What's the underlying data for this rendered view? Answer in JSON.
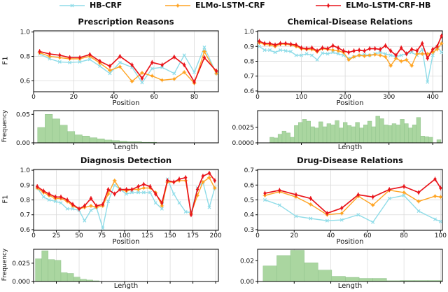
{
  "legend": {
    "items": [
      {
        "label": "HB-CRF",
        "color": "#8fdce8",
        "marker": "x"
      },
      {
        "label": "ELMo-LSTM-CRF",
        "color": "#ffa423",
        "marker": "star"
      },
      {
        "label": "ELMo-LSTM-CRF-HB",
        "color": "#e9151b",
        "marker": "diamond"
      }
    ]
  },
  "colors": {
    "hb_crf": "#8fdce8",
    "elmo_lstm_crf": "#ffa423",
    "elmo_lstm_crf_hb": "#e9151b",
    "hist_fill": "#aad6a0",
    "hist_edge": "#8fc28b",
    "grid": "#d9d9d9",
    "axis": "#000000"
  },
  "chart_data": [
    {
      "type": "line",
      "title": "Prescription Reasons",
      "xlabel": "Position",
      "ylabel": "F1",
      "xlim": [
        0,
        92
      ],
      "ylim": [
        0.51,
        1.01
      ],
      "xticks": [
        0,
        20,
        40,
        60,
        80
      ],
      "yticks": {
        "values": [
          0.6,
          0.8,
          1.0
        ],
        "labels": [
          "0.6",
          "0.8",
          "1.0"
        ]
      },
      "x": [
        3,
        8,
        13,
        18,
        23,
        28,
        33,
        38,
        43,
        49,
        54,
        59,
        64,
        70,
        75,
        80,
        85,
        91
      ],
      "series": [
        {
          "name": "HB-CRF",
          "values": [
            0.82,
            0.78,
            0.755,
            0.75,
            0.755,
            0.775,
            0.72,
            0.66,
            0.75,
            0.71,
            0.585,
            0.7,
            0.71,
            0.66,
            0.81,
            0.67,
            0.875,
            0.66
          ]
        },
        {
          "name": "ELMo-LSTM-CRF",
          "values": [
            0.83,
            0.8,
            0.79,
            0.78,
            0.78,
            0.8,
            0.745,
            0.685,
            0.715,
            0.595,
            0.665,
            0.64,
            0.605,
            0.615,
            0.67,
            0.58,
            0.84,
            0.66
          ]
        },
        {
          "name": "ELMo-LSTM-CRF-HB",
          "values": [
            0.84,
            0.82,
            0.81,
            0.79,
            0.79,
            0.815,
            0.76,
            0.72,
            0.8,
            0.73,
            0.62,
            0.75,
            0.73,
            0.795,
            0.73,
            0.59,
            0.79,
            0.68
          ]
        }
      ],
      "histogram": {
        "type": "bar",
        "xlabel": "Length",
        "ylabel": "Frequency",
        "ylim": [
          0,
          0.0565
        ],
        "yticks": {
          "values": [
            0.0,
            0.05
          ],
          "labels": [
            "0.00",
            "0.05"
          ]
        },
        "bin_start": 2,
        "bin_width": 3.7,
        "heights": [
          0.027,
          0.05,
          0.042,
          0.031,
          0.02,
          0.014,
          0.012,
          0.009,
          0.007,
          0.005,
          0.004,
          0.003,
          0.002,
          0.002,
          0.001,
          0.001
        ]
      }
    },
    {
      "type": "line",
      "title": "Chemical-Disease Relations",
      "xlabel": "Position",
      "ylabel": "",
      "xlim": [
        0,
        422
      ],
      "ylim": [
        0.595,
        1.005
      ],
      "xticks": [
        0,
        100,
        200,
        300,
        400
      ],
      "yticks": {
        "values": [
          0.6,
          0.7,
          0.8,
          0.9,
          1.0
        ],
        "labels": [
          "0.6",
          "0.7",
          "0.8",
          "0.9",
          "1.0"
        ]
      },
      "x": [
        4,
        16,
        28,
        40,
        52,
        64,
        76,
        88,
        100,
        112,
        124,
        136,
        148,
        160,
        172,
        184,
        196,
        208,
        220,
        232,
        244,
        256,
        268,
        280,
        292,
        304,
        316,
        328,
        340,
        352,
        364,
        376,
        388,
        400,
        410,
        420
      ],
      "series": [
        {
          "name": "HB-CRF",
          "values": [
            0.9,
            0.875,
            0.875,
            0.86,
            0.875,
            0.87,
            0.865,
            0.84,
            0.84,
            0.85,
            0.84,
            0.81,
            0.855,
            0.85,
            0.86,
            0.85,
            0.84,
            0.82,
            0.83,
            0.84,
            0.845,
            0.84,
            0.85,
            0.86,
            0.85,
            0.84,
            0.83,
            0.84,
            0.85,
            0.86,
            0.84,
            0.88,
            0.66,
            0.84,
            0.9,
            0.86
          ]
        },
        {
          "name": "ELMo-LSTM-CRF",
          "values": [
            0.925,
            0.915,
            0.91,
            0.9,
            0.915,
            0.915,
            0.91,
            0.9,
            0.885,
            0.88,
            0.88,
            0.865,
            0.885,
            0.88,
            0.875,
            0.87,
            0.86,
            0.81,
            0.83,
            0.84,
            0.835,
            0.84,
            0.845,
            0.84,
            0.83,
            0.77,
            0.82,
            0.8,
            0.81,
            0.77,
            0.85,
            0.85,
            0.85,
            0.86,
            0.88,
            0.92
          ]
        },
        {
          "name": "ELMo-LSTM-CRF-HB",
          "values": [
            0.935,
            0.92,
            0.92,
            0.91,
            0.92,
            0.92,
            0.915,
            0.91,
            0.89,
            0.885,
            0.89,
            0.87,
            0.89,
            0.885,
            0.905,
            0.89,
            0.87,
            0.86,
            0.87,
            0.875,
            0.87,
            0.885,
            0.885,
            0.88,
            0.905,
            0.87,
            0.84,
            0.89,
            0.85,
            0.88,
            0.87,
            0.92,
            0.82,
            0.88,
            0.9,
            0.97
          ]
        }
      ],
      "histogram": {
        "type": "bar",
        "xlabel": "Length",
        "ylabel": "",
        "ylim": [
          0,
          0.0052
        ],
        "yticks": {
          "values": [
            0.0,
            0.0025
          ],
          "labels": [
            "0.0000",
            "0.0025"
          ]
        },
        "bin_start": 28,
        "bin_width": 9.3,
        "heights": [
          0.0009,
          0.0008,
          0.0014,
          0.0019,
          0.0016,
          0.0009,
          0.0028,
          0.0033,
          0.0038,
          0.0035,
          0.0026,
          0.0024,
          0.0034,
          0.0026,
          0.0031,
          0.0029,
          0.0036,
          0.0024,
          0.0033,
          0.0028,
          0.0026,
          0.0033,
          0.0024,
          0.0029,
          0.0035,
          0.0026,
          0.0043,
          0.0039,
          0.0029,
          0.0028,
          0.0031,
          0.0029,
          0.0038,
          0.0031,
          0.0024,
          0.0029,
          0.0041,
          0.0011,
          0.001,
          0.0009,
          0,
          0.0005
        ]
      }
    },
    {
      "type": "line",
      "title": "Diagnosis Detection",
      "xlabel": "Position",
      "ylabel": "F1",
      "xlim": [
        0,
        203
      ],
      "ylim": [
        0.595,
        1.005
      ],
      "xticks": [
        0,
        25,
        50,
        75,
        100,
        125,
        150,
        175,
        200
      ],
      "yticks": {
        "values": [
          0.6,
          0.7,
          0.8,
          0.9,
          1.0
        ],
        "labels": [
          "0.6",
          "0.7",
          "0.8",
          "0.9",
          "1.0"
        ]
      },
      "x": [
        4,
        11,
        17,
        24,
        30,
        37,
        43,
        50,
        56,
        63,
        69,
        76,
        82,
        89,
        95,
        102,
        108,
        115,
        121,
        128,
        134,
        141,
        147,
        154,
        160,
        167,
        173,
        180,
        186,
        193,
        199
      ],
      "series": [
        {
          "name": "HB-CRF",
          "values": [
            0.88,
            0.82,
            0.8,
            0.79,
            0.78,
            0.74,
            0.74,
            0.73,
            0.66,
            0.73,
            0.75,
            0.61,
            0.79,
            0.9,
            0.87,
            0.84,
            0.85,
            0.85,
            0.85,
            0.85,
            0.78,
            0.74,
            0.94,
            0.84,
            0.78,
            0.72,
            0.715,
            0.88,
            0.92,
            0.75,
            0.88
          ]
        },
        {
          "name": "ELMo-LSTM-CRF",
          "values": [
            0.88,
            0.85,
            0.83,
            0.81,
            0.81,
            0.79,
            0.76,
            0.74,
            0.75,
            0.76,
            0.75,
            0.76,
            0.84,
            0.93,
            0.87,
            0.86,
            0.87,
            0.87,
            0.88,
            0.88,
            0.85,
            0.76,
            0.92,
            0.92,
            0.93,
            0.93,
            0.71,
            0.83,
            0.92,
            0.95,
            0.88
          ]
        },
        {
          "name": "ELMo-LSTM-CRF-HB",
          "values": [
            0.89,
            0.86,
            0.84,
            0.82,
            0.82,
            0.8,
            0.77,
            0.74,
            0.76,
            0.81,
            0.76,
            0.77,
            0.87,
            0.84,
            0.87,
            0.87,
            0.87,
            0.89,
            0.905,
            0.89,
            0.84,
            0.78,
            0.93,
            0.92,
            0.94,
            0.95,
            0.7,
            0.87,
            0.96,
            0.98,
            0.93
          ]
        }
      ],
      "histogram": {
        "type": "bar",
        "xlabel": "Length",
        "ylabel": "Frequency",
        "ylim": [
          0,
          0.044
        ],
        "yticks": {
          "values": [
            0.0,
            0.025
          ],
          "labels": [
            "0.000",
            "0.025"
          ]
        },
        "bin_start": 2,
        "bin_width": 7,
        "heights": [
          0.031,
          0.042,
          0.03,
          0.029,
          0.012,
          0.011,
          0.006,
          0.003,
          0.002,
          0.001
        ]
      }
    },
    {
      "type": "line",
      "title": "Drug-Disease Relations",
      "xlabel": "Position",
      "ylabel": "",
      "xlim": [
        0,
        101
      ],
      "ylim": [
        0.295,
        0.705
      ],
      "xticks": [
        0,
        20,
        40,
        60,
        80,
        100
      ],
      "yticks": {
        "values": [
          0.3,
          0.4,
          0.5,
          0.6,
          0.7
        ],
        "labels": [
          "0.3",
          "0.4",
          "0.5",
          "0.6",
          "0.7"
        ]
      },
      "x": [
        4,
        12,
        21,
        29,
        38,
        46,
        55,
        63,
        72,
        80,
        88,
        97,
        100
      ],
      "series": [
        {
          "name": "HB-CRF",
          "values": [
            0.5,
            0.465,
            0.39,
            0.375,
            0.36,
            0.365,
            0.4,
            0.35,
            0.51,
            0.53,
            0.425,
            0.37,
            0.355
          ]
        },
        {
          "name": "ELMo-LSTM-CRF",
          "values": [
            0.53,
            0.555,
            0.52,
            0.47,
            0.4,
            0.41,
            0.525,
            0.465,
            0.565,
            0.55,
            0.49,
            0.525,
            0.52
          ]
        },
        {
          "name": "ELMo-LSTM-CRF-HB",
          "values": [
            0.545,
            0.565,
            0.535,
            0.51,
            0.41,
            0.445,
            0.535,
            0.52,
            0.57,
            0.59,
            0.55,
            0.64,
            0.58
          ]
        }
      ],
      "histogram": {
        "type": "bar",
        "xlabel": "Length",
        "ylabel": "",
        "ylim": [
          0,
          0.031
        ],
        "yticks": {
          "values": [
            0.0,
            0.02
          ],
          "labels": [
            "0.00",
            "0.02"
          ]
        },
        "bin_start": 3,
        "bin_width": 7.5,
        "heights": [
          0.015,
          0.025,
          0.03,
          0.018,
          0.011,
          0.005,
          0.004,
          0.003,
          0.003,
          0.0008,
          0.001,
          0.001,
          0.001
        ]
      }
    }
  ]
}
